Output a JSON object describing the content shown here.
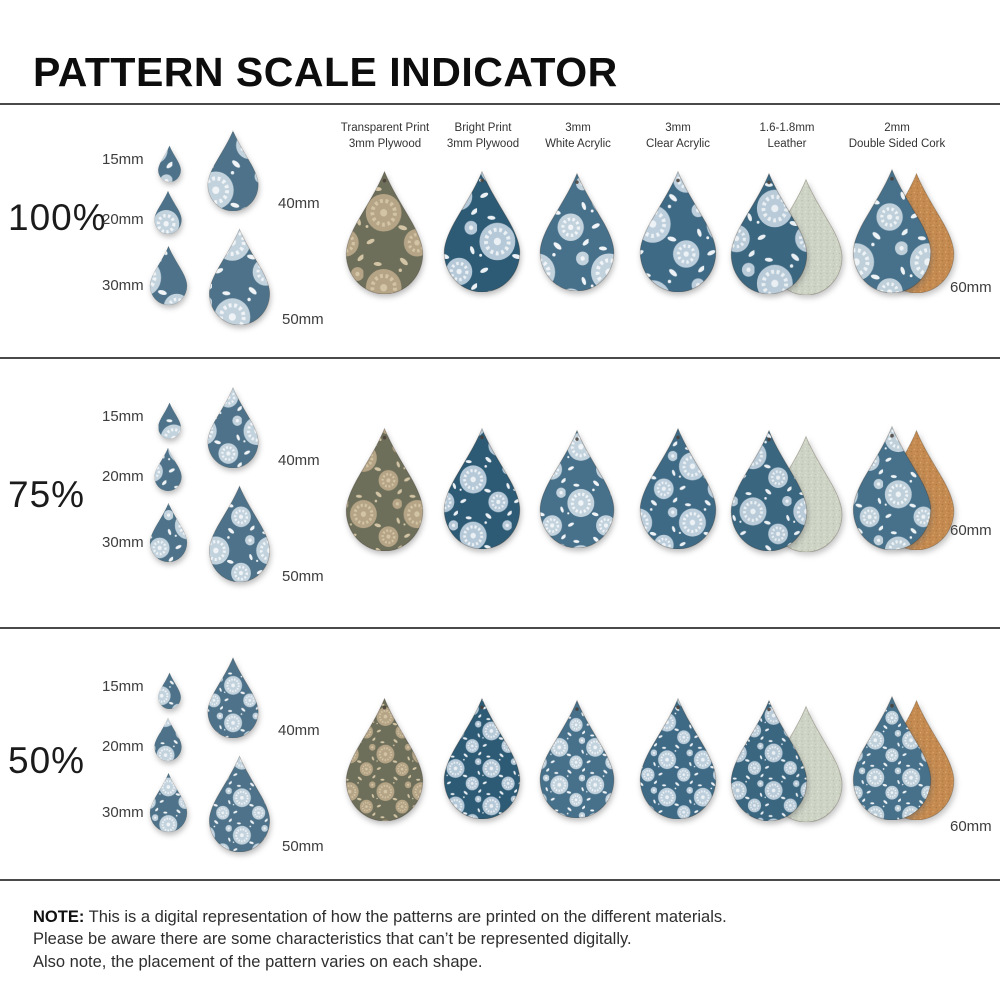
{
  "title": "PATTERN SCALE INDICATOR",
  "sizes": {
    "s15": "15mm",
    "s20": "20mm",
    "s30": "30mm",
    "s40": "40mm",
    "s50": "50mm",
    "s60": "60mm"
  },
  "rows": [
    {
      "scale_label": "100%",
      "scale_factor": 1
    },
    {
      "scale_label": "75%",
      "scale_factor": 0.75
    },
    {
      "scale_label": "50%",
      "scale_factor": 0.5
    }
  ],
  "materials": [
    {
      "id": "transparent-print-plywood",
      "label_line1": "Transparent Print",
      "label_line2": "3mm Plywood",
      "base": "#6e6f5a",
      "flower": "#b5a486",
      "accent": "#d2c4a4",
      "pair": false
    },
    {
      "id": "bright-print-plywood",
      "label_line1": "Bright Print",
      "label_line2": "3mm Plywood",
      "base": "#2d5a74",
      "flower": "#b6c9d8",
      "accent": "#ecf1f5",
      "pair": false
    },
    {
      "id": "white-acrylic",
      "label_line1": "3mm",
      "label_line2": "White Acrylic",
      "base": "#47708a",
      "flower": "#c3d3de",
      "accent": "#f1f5f8",
      "pair": false
    },
    {
      "id": "clear-acrylic",
      "label_line1": "3mm",
      "label_line2": "Clear Acrylic",
      "base": "#3f6a85",
      "flower": "#bdcfdc",
      "accent": "#edf2f6",
      "pair": false
    },
    {
      "id": "leather",
      "label_line1": "1.6-1.8mm",
      "label_line2": "Leather",
      "base": "#3b6680",
      "flower": "#b9cbd8",
      "accent": "#e9eff3",
      "pair": true,
      "back_color": "#cdd3c5",
      "back_speckle_light": "#e3e7db",
      "back_speckle_dark": "#b3baa6"
    },
    {
      "id": "double-sided-cork",
      "label_line1": "2mm",
      "label_line2": "Double Sided Cork",
      "base": "#47718b",
      "flower": "#bfd0db",
      "accent": "#eef3f6",
      "pair": true,
      "back_color": "#c48a50",
      "back_speckle_light": "#dcab72",
      "back_speckle_dark": "#a06f3b"
    }
  ],
  "small_drop_colors": {
    "base": "#4d7289",
    "flower": "#c3d3de",
    "accent": "#f0f4f7"
  },
  "note": {
    "label": "NOTE:",
    "line1": "This is a digital representation of how the patterns are printed on the different materials.",
    "line2": "Please be aware there are some characteristics that can’t be represented digitally.",
    "line3": "Also note, the placement of the pattern varies on each shape."
  }
}
